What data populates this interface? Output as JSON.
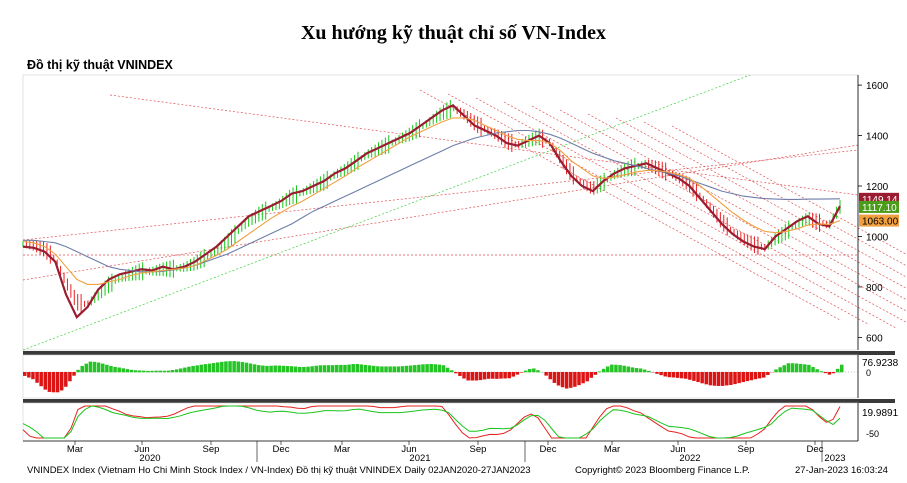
{
  "title": "Xu hướng kỹ thuật chỉ số VN-Index",
  "chart_title": "Đồ thị kỹ thuật VNINDEX",
  "footer": {
    "left": "VNINDEX Index (Vietnam Ho Chi Minh Stock Index / VN-Index) Đồ thị kỹ thuật VNINDEX  Daily 02JAN2020-27JAN2023",
    "copyright": "Copyright© 2023 Bloomberg Finance L.P.",
    "timestamp": "27-Jan-2023 16:03:24"
  },
  "colors": {
    "price_up": "#19c419",
    "price_down": "#e82020",
    "ma_long": "#9b1b30",
    "ma_mid": "#6e7ea8",
    "ma_short": "#f0a040",
    "trend_red": "#e05050",
    "trend_green": "#39d139",
    "momentum_up": "#24c424",
    "momentum_down": "#dd1414"
  },
  "chart_data": {
    "type": "line",
    "xlabel": "",
    "ylabel": "",
    "x_tick_labels": [
      "Mar",
      "Jun",
      "Sep",
      "Dec",
      "Mar",
      "Jun",
      "Sep",
      "Dec",
      "Mar",
      "Jun",
      "Sep",
      "Dec"
    ],
    "x_year_labels": [
      "2020",
      "2021",
      "2022",
      "2023"
    ],
    "ylim": [
      550,
      1640
    ],
    "y_ticks": [
      600,
      800,
      1000,
      1200,
      1400,
      1600
    ],
    "price_labels": [
      "1149.14",
      "1117.10",
      "1063.00"
    ],
    "series": [
      {
        "values": [
          960,
          955,
          940,
          900,
          770,
          680,
          720,
          790,
          830,
          850,
          860,
          870,
          865,
          880,
          870,
          880,
          900,
          930,
          960,
          1000,
          1040,
          1080,
          1100,
          1120,
          1140,
          1170,
          1180,
          1200,
          1220,
          1250,
          1270,
          1300,
          1330,
          1350,
          1370,
          1390,
          1410,
          1440,
          1470,
          1500,
          1520,
          1480,
          1440,
          1420,
          1400,
          1370,
          1360,
          1380,
          1400,
          1370,
          1300,
          1240,
          1200,
          1180,
          1220,
          1250,
          1270,
          1280,
          1290,
          1270,
          1250,
          1230,
          1200,
          1150,
          1100,
          1050,
          1010,
          980,
          960,
          950,
          1000,
          1030,
          1060,
          1080,
          1050,
          1040,
          1120
        ]
      },
      {
        "values": [
          985,
          985,
          980,
          975,
          960,
          940,
          920,
          900,
          880,
          870,
          865,
          860,
          860,
          862,
          868,
          875,
          885,
          900,
          915,
          930,
          950,
          970,
          990,
          1010,
          1030,
          1050,
          1075,
          1100,
          1120,
          1140,
          1160,
          1180,
          1200,
          1220,
          1240,
          1260,
          1280,
          1300,
          1320,
          1340,
          1360,
          1375,
          1390,
          1400,
          1410,
          1415,
          1420,
          1420,
          1415,
          1405,
          1390,
          1370,
          1350,
          1330,
          1315,
          1300,
          1290,
          1280,
          1270,
          1260,
          1250,
          1240,
          1225,
          1210,
          1195,
          1180,
          1170,
          1160,
          1155,
          1150,
          1148,
          1147,
          1147,
          1148,
          1148,
          1149,
          1149.14
        ]
      },
      {
        "values": [
          980,
          975,
          960,
          930,
          880,
          830,
          810,
          810,
          820,
          830,
          845,
          855,
          860,
          865,
          870,
          875,
          885,
          905,
          925,
          950,
          980,
          1010,
          1040,
          1070,
          1095,
          1120,
          1140,
          1165,
          1190,
          1215,
          1240,
          1270,
          1295,
          1320,
          1345,
          1370,
          1395,
          1415,
          1435,
          1455,
          1470,
          1470,
          1460,
          1440,
          1420,
          1400,
          1385,
          1380,
          1380,
          1370,
          1340,
          1300,
          1270,
          1240,
          1230,
          1235,
          1245,
          1255,
          1262,
          1262,
          1255,
          1245,
          1230,
          1200,
          1165,
          1130,
          1095,
          1065,
          1040,
          1020,
          1015,
          1020,
          1030,
          1045,
          1050,
          1048,
          1063
        ]
      },
      {
        "values": [
          970,
          965,
          950,
          910,
          820,
          740,
          730,
          770,
          810,
          835,
          850,
          862,
          862,
          870,
          872,
          878,
          893,
          918,
          945,
          980,
          1020,
          1060,
          1090,
          1112,
          1132,
          1160,
          1175,
          1195,
          1215,
          1245,
          1265,
          1295,
          1325,
          1345,
          1365,
          1385,
          1405,
          1432,
          1460,
          1490,
          1510,
          1485,
          1450,
          1425,
          1405,
          1378,
          1362,
          1378,
          1395,
          1372,
          1310,
          1250,
          1210,
          1190,
          1215,
          1245,
          1265,
          1277,
          1287,
          1272,
          1253,
          1233,
          1205,
          1160,
          1110,
          1060,
          1020,
          990,
          968,
          955,
          990,
          1020,
          1050,
          1072,
          1055,
          1045,
          1117.1
        ]
      }
    ],
    "momentum_label": "76.9238",
    "momentum_ticks": [
      "0"
    ],
    "oscillator_label": "19.9891",
    "oscillator_ticks": [
      "-50"
    ]
  }
}
